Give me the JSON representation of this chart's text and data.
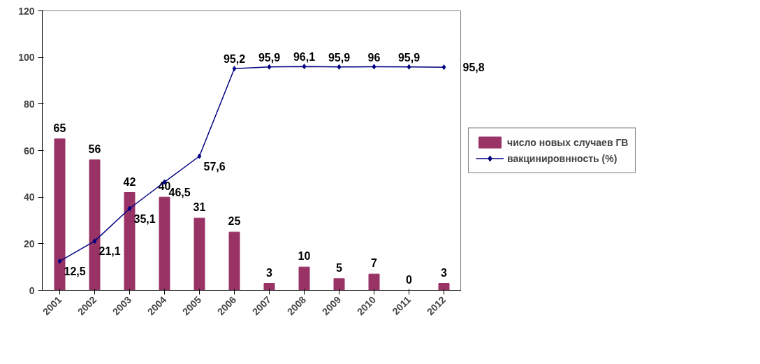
{
  "chart_data": {
    "type": "bar",
    "categories": [
      "2001",
      "2002",
      "2003",
      "2004",
      "2005",
      "2006",
      "2007",
      "2008",
      "2009",
      "2010",
      "2011",
      "2012"
    ],
    "series": [
      {
        "name": "число новых случаев ГВ",
        "color": "#993366",
        "values": [
          65,
          56,
          42,
          40,
          31,
          25,
          3,
          10,
          5,
          7,
          0,
          3
        ],
        "value_labels": [
          "65",
          "56",
          "42",
          "40",
          "31",
          "25",
          "3",
          "10",
          "5",
          "7",
          "0",
          "3"
        ]
      },
      {
        "name": "вакцинировнность (%)",
        "type": "line",
        "color": "#000080",
        "marker": "diamond",
        "values": [
          12.5,
          21.1,
          35.1,
          46.5,
          57.6,
          95.2,
          95.9,
          96.1,
          95.9,
          96,
          95.9,
          95.8
        ],
        "value_labels": [
          "12,5",
          "21,1",
          "35,1",
          "46,5",
          "57,6",
          "95,2",
          "95,9",
          "96,1",
          "95,9",
          "96",
          "95,9",
          "95,8"
        ]
      }
    ],
    "ylim": [
      0,
      120
    ],
    "yticks": [
      0,
      20,
      40,
      60,
      80,
      100,
      120
    ],
    "grid": false,
    "legend": "right"
  }
}
